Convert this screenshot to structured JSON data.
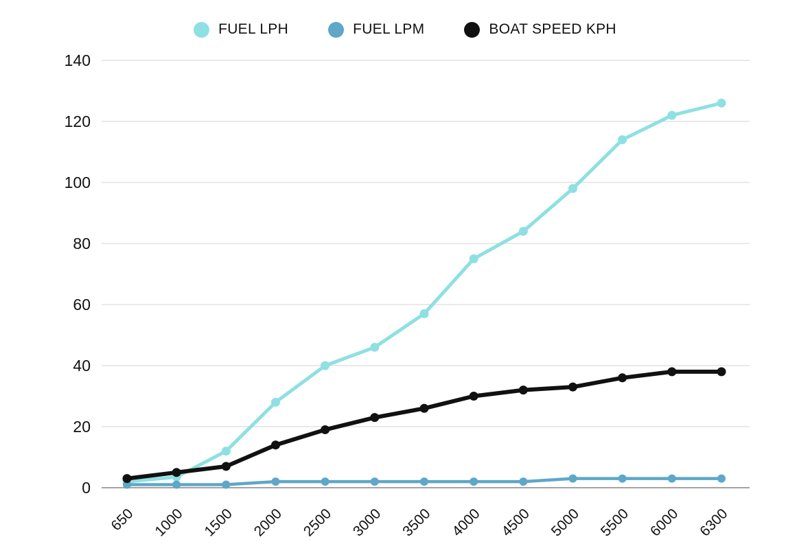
{
  "chart_data": {
    "type": "line",
    "title": "",
    "xlabel": "",
    "ylabel": "",
    "categories": [
      "650",
      "1000",
      "1500",
      "2000",
      "2500",
      "3000",
      "3500",
      "4000",
      "4500",
      "5000",
      "5500",
      "6000",
      "6300"
    ],
    "series": [
      {
        "name": "FUEL LPH",
        "color": "#8ee0e2",
        "line_width": 5,
        "point_radius": 6.5,
        "values": [
          2,
          3.5,
          12,
          28,
          40,
          46,
          57,
          75,
          84,
          98,
          114,
          122,
          126
        ]
      },
      {
        "name": "FUEL LPM",
        "color": "#5ea7c8",
        "line_width": 4.5,
        "point_radius": 6,
        "values": [
          1,
          1,
          1,
          2,
          2,
          2,
          2,
          2,
          2,
          3,
          3,
          3,
          3
        ]
      },
      {
        "name": "BOAT SPEED KPH",
        "color": "#111111",
        "line_width": 6,
        "point_radius": 6.5,
        "values": [
          3,
          5,
          7,
          14,
          19,
          23,
          26,
          30,
          32,
          33,
          36,
          38,
          38
        ]
      }
    ],
    "ylim": [
      0,
      140
    ],
    "ytick_step": 20,
    "ytick_labels": [
      "0",
      "20",
      "40",
      "60",
      "80",
      "100",
      "120",
      "140"
    ],
    "grid": true,
    "gridline_color": "#dcdcdc",
    "zero_axis_color": "#a3a3a3",
    "axis_text_color": "#111111",
    "x_label_rotation": -45,
    "legend_position": "top"
  }
}
